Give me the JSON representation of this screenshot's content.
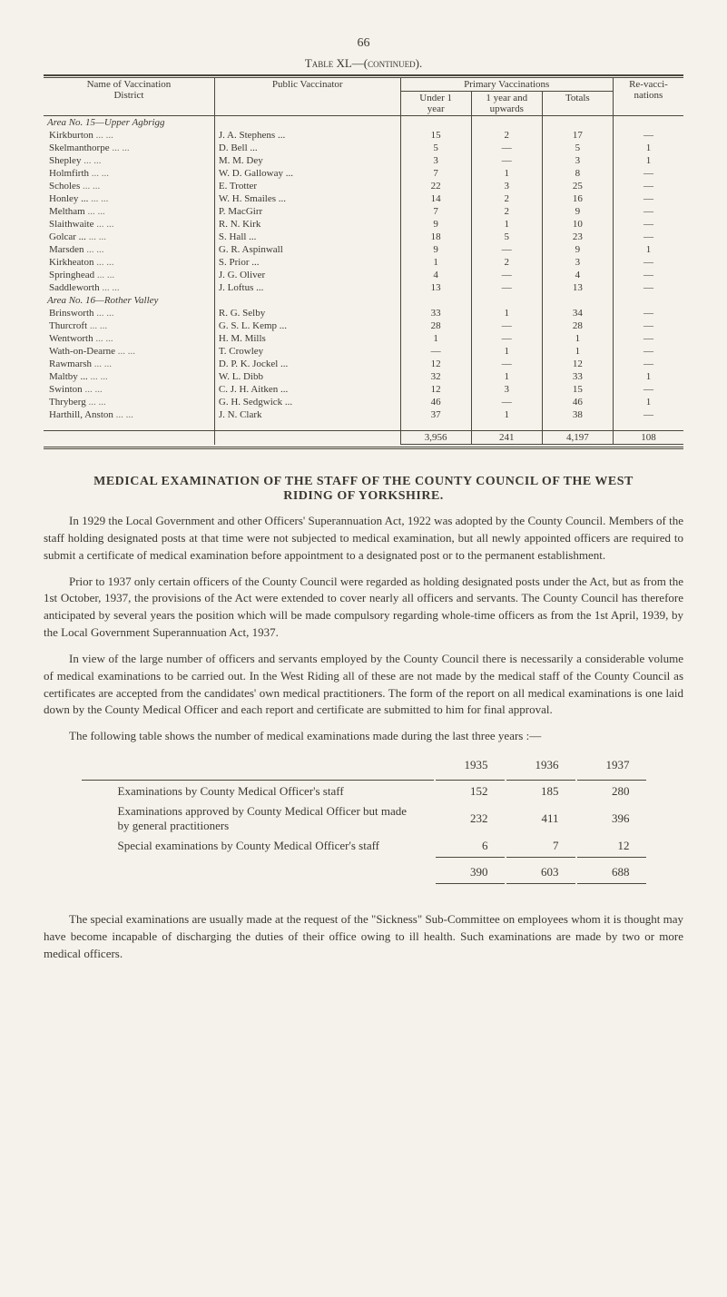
{
  "page_number": "66",
  "table_caption": "Table XL—(continued).",
  "colors": {
    "page_bg": "#f4f2ea",
    "text": "#3a3830",
    "rule": "#4a473c"
  },
  "vac_table": {
    "head": {
      "name": "Name of Vaccination\nDistrict",
      "pub": "Public Vaccinator",
      "prim": "Primary Vaccinations",
      "u1": "Under 1\nyear",
      "y1": "1 year and\nupwards",
      "tot": "Totals",
      "rev": "Re-vacci-\nnations"
    },
    "areas": [
      {
        "title": "Area No. 15—Upper Agbrigg",
        "rows": [
          {
            "d": "Kirkburton",
            "v": "J. A. Stephens ...",
            "u": "15",
            "y": "2",
            "t": "17",
            "r": "—"
          },
          {
            "d": "Skelmanthorpe",
            "v": "D. Bell   ...",
            "u": "5",
            "y": "—",
            "t": "5",
            "r": "1"
          },
          {
            "d": "Shepley",
            "v": "M. M. Dey",
            "u": "3",
            "y": "—",
            "t": "3",
            "r": "1"
          },
          {
            "d": "Holmfirth",
            "v": "W. D. Galloway ...",
            "u": "7",
            "y": "1",
            "t": "8",
            "r": "—"
          },
          {
            "d": "Scholes",
            "v": "E. Trotter",
            "u": "22",
            "y": "3",
            "t": "25",
            "r": "—"
          },
          {
            "d": "Honley ...",
            "v": "W. H. Smailes ...",
            "u": "14",
            "y": "2",
            "t": "16",
            "r": "—"
          },
          {
            "d": "Meltham",
            "v": "P. MacGirr",
            "u": "7",
            "y": "2",
            "t": "9",
            "r": "—"
          },
          {
            "d": "Slaithwaite",
            "v": "R. N. Kirk",
            "u": "9",
            "y": "1",
            "t": "10",
            "r": "—"
          },
          {
            "d": "Golcar  ...",
            "v": "S. Hall   ...",
            "u": "18",
            "y": "5",
            "t": "23",
            "r": "—"
          },
          {
            "d": "Marsden",
            "v": "G. R. Aspinwall",
            "u": "9",
            "y": "—",
            "t": "9",
            "r": "1"
          },
          {
            "d": "Kirkheaton",
            "v": "S. Prior  ...",
            "u": "1",
            "y": "2",
            "t": "3",
            "r": "—"
          },
          {
            "d": "Springhead",
            "v": "J. G. Oliver",
            "u": "4",
            "y": "—",
            "t": "4",
            "r": "—"
          },
          {
            "d": "Saddleworth",
            "v": "J. Loftus ...",
            "u": "13",
            "y": "—",
            "t": "13",
            "r": "—"
          }
        ]
      },
      {
        "title": "Area No. 16—Rother Valley",
        "rows": [
          {
            "d": "Brinsworth",
            "v": "R. G. Selby",
            "u": "33",
            "y": "1",
            "t": "34",
            "r": "—"
          },
          {
            "d": "Thurcroft",
            "v": "G. S. L. Kemp ...",
            "u": "28",
            "y": "—",
            "t": "28",
            "r": "—"
          },
          {
            "d": "Wentworth",
            "v": "H. M. Mills",
            "u": "1",
            "y": "—",
            "t": "1",
            "r": "—"
          },
          {
            "d": "Wath-on-Dearne",
            "v": "T. Crowley",
            "u": "—",
            "y": "1",
            "t": "1",
            "r": "—"
          },
          {
            "d": "Rawmarsh",
            "v": "D. P. K. Jockel ...",
            "u": "12",
            "y": "—",
            "t": "12",
            "r": "—"
          },
          {
            "d": "Maltby ...",
            "v": "W. L. Dibb",
            "u": "32",
            "y": "1",
            "t": "33",
            "r": "1"
          },
          {
            "d": "Swinton",
            "v": "C. J. H. Aitken ...",
            "u": "12",
            "y": "3",
            "t": "15",
            "r": "—"
          },
          {
            "d": "Thryberg",
            "v": "G. H. Sedgwick ...",
            "u": "46",
            "y": "—",
            "t": "46",
            "r": "1"
          },
          {
            "d": "Harthill, Anston",
            "v": "J. N. Clark",
            "u": "37",
            "y": "1",
            "t": "38",
            "r": "—"
          }
        ]
      }
    ],
    "totals": {
      "u": "3,956",
      "y": "241",
      "t": "4,197",
      "r": "108"
    }
  },
  "section_heading": "MEDICAL EXAMINATION OF THE STAFF OF THE COUNTY COUNCIL OF THE WEST RIDING OF YORKSHIRE.",
  "paras": {
    "p1": "In 1929 the Local Government and other Officers' Superannuation Act, 1922 was adopted by the County Council.  Members of the staff holding designated posts at that time were not subjected to medical examination, but all newly appointed officers are required to submit a certificate of medical examination before appointment to a designated post or to the permanent establishment.",
    "p2": "Prior to 1937 only certain officers of the County Council were regarded as holding designated posts under the Act, but as from the 1st October, 1937, the provisions of the Act were extended to cover nearly all officers and servants.  The County Council has therefore anticipated by several years the position which will be made compulsory regarding whole-time officers as from the 1st April, 1939, by the Local Government Superannuation Act, 1937.",
    "p3": "In view of the large number of officers and servants employed by the County Council there is necessarily a considerable volume of medical examinations to be carried out.  In the West Riding all of these are not made by the medical staff of the County Council as certificates are accepted from the candidates' own medical practitioners.  The form of the report on all medical examinations is one laid down by the County Medical Officer and each report and certificate are submitted to him for final approval.",
    "p4": "The following table shows the number of medical examinations made during the last three years :—",
    "p5": "The special examinations are usually made at the request of the \"Sickness\" Sub-Committee on employees whom it is thought may have become incapable of discharging the duties of their office owing to ill health.  Such examinations are made by two or more medical officers."
  },
  "year_table": {
    "years": {
      "a": "1935",
      "b": "1936",
      "c": "1937"
    },
    "rows": [
      {
        "lab": "Examinations by County Medical Officer's staff",
        "a": "152",
        "b": "185",
        "c": "280"
      },
      {
        "lab": "Examinations approved by County Medical Officer but made by general practitioners",
        "a": "232",
        "b": "411",
        "c": "396"
      },
      {
        "lab": "Special examinations by County Medical Officer's staff",
        "a": "6",
        "b": "7",
        "c": "12"
      }
    ],
    "totals": {
      "a": "390",
      "b": "603",
      "c": "688"
    }
  }
}
